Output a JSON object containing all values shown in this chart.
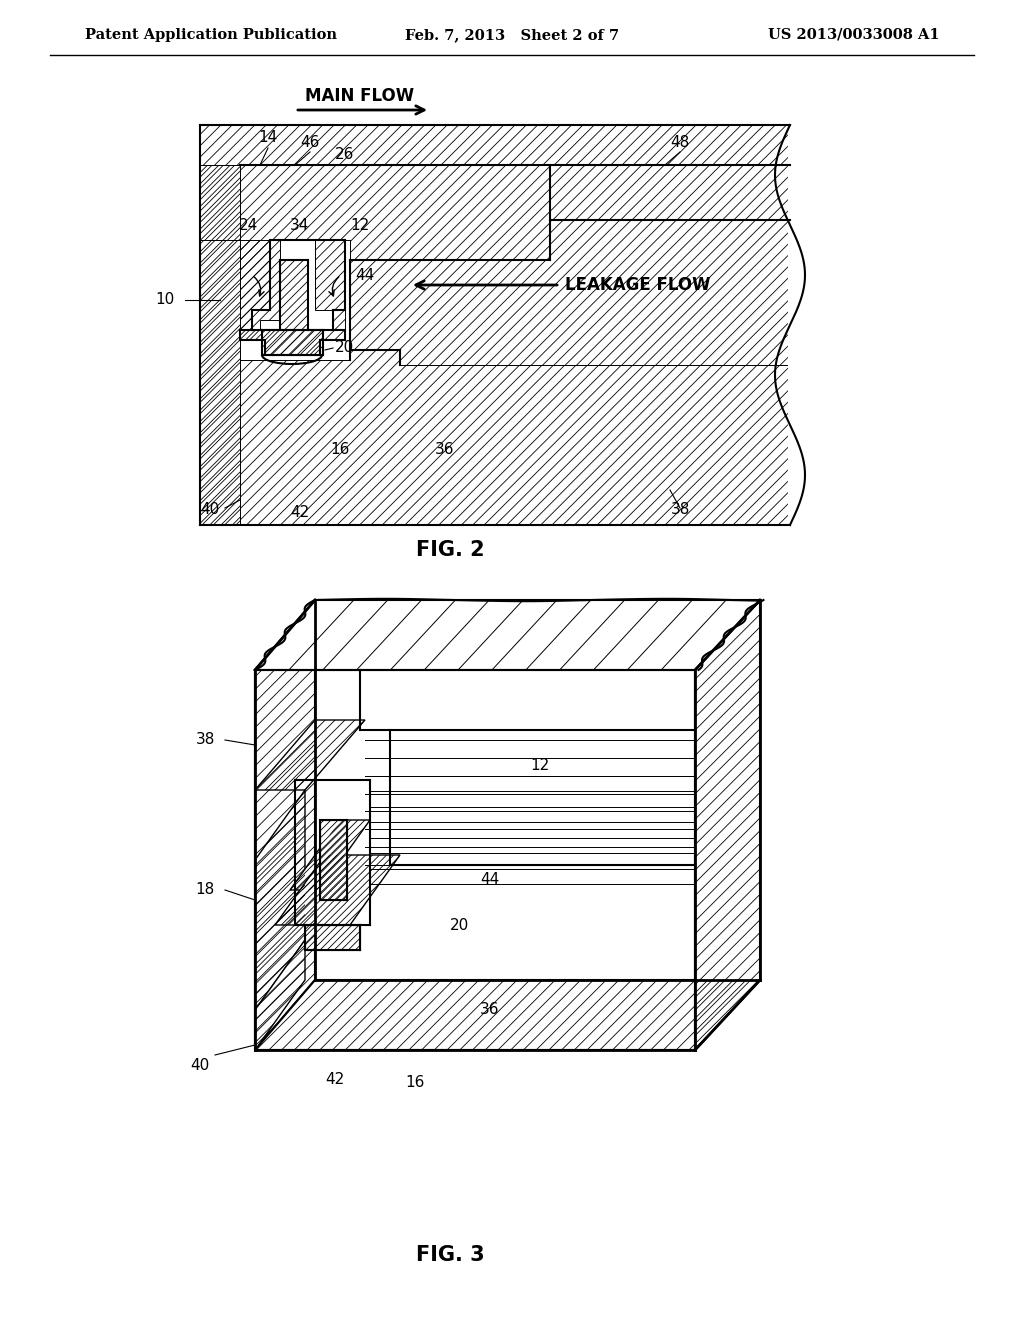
{
  "bg_color": "#ffffff",
  "header_left": "Patent Application Publication",
  "header_center": "Feb. 7, 2013   Sheet 2 of 7",
  "header_right": "US 2013/0033008 A1",
  "fig2_caption": "FIG. 2",
  "fig3_caption": "FIG. 3",
  "line_color": "#000000",
  "hatch_color": "#000000",
  "label_fontsize": 11,
  "header_fontsize": 10.5,
  "caption_fontsize": 15
}
